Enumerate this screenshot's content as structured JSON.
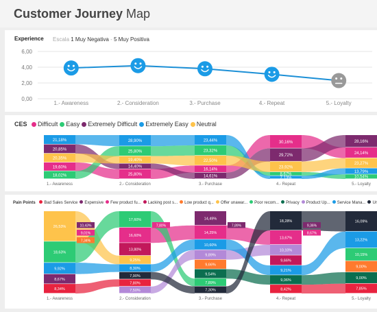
{
  "page": {
    "title_bold": "Customer Journey",
    "title_rest": " Map"
  },
  "experience": {
    "title": "Experience",
    "scale_label": "Escala",
    "scale_low": "1 Muy Negativa",
    "scale_sep": " - ",
    "scale_high": "5 Muy Positiva"
  },
  "ces": {
    "title": "CES"
  },
  "pain": {
    "title": "Pain Points"
  },
  "chart_data": [
    {
      "type": "line",
      "title": "Experience",
      "categories": [
        "1.- Awareness",
        "2.- Consideration",
        "3.- Purchase",
        "4.- Repeat",
        "5.- Loyalty"
      ],
      "values": [
        3.9,
        4.2,
        3.8,
        3.1,
        2.3
      ],
      "marker_icons": [
        "smile-icon",
        "smile-icon",
        "smile-icon",
        "smile-icon",
        "neutral-face-icon"
      ],
      "marker_colors": [
        "#1b9be6",
        "#1b9be6",
        "#1b9be6",
        "#1b9be6",
        "#999999"
      ],
      "ylim": [
        0,
        6
      ],
      "yticks": [
        "0,00",
        "2,00",
        "4,00",
        "6,00"
      ],
      "grid": true,
      "line_color": "#1b8fd6"
    },
    {
      "type": "ribbon",
      "title": "CES",
      "categories": [
        "1.- Awareness",
        "2.- Consideration",
        "3.- Purchase",
        "4.- Repeat",
        "5.- Loyalty"
      ],
      "series": [
        {
          "name": "Difficult",
          "color": "#e52e8a",
          "labels": [
            "19,60%",
            "25,80%",
            "16,14%",
            "30,16%",
            "24,14%"
          ],
          "values": [
            19.6,
            25.8,
            16.14,
            30.16,
            24.14
          ]
        },
        {
          "name": "Easy",
          "color": "#2dcb75",
          "labels": [
            "18,02%",
            "25,80%",
            "23,32%",
            "8,67%",
            "10,54%"
          ],
          "values": [
            18.02,
            25.8,
            23.32,
            8.67,
            10.54
          ]
        },
        {
          "name": "Extremely Difficult",
          "color": "#7d2a6e",
          "labels": [
            "20,85%",
            "14,40%",
            "14,61%",
            "29,72%",
            "28,16%"
          ],
          "values": [
            20.85,
            14.4,
            14.61,
            29.72,
            28.16
          ]
        },
        {
          "name": "Extremely Easy",
          "color": "#1b9be6",
          "labels": [
            "21,18%",
            "28,90%",
            "23,44%",
            "7,13%",
            "13,79%"
          ],
          "values": [
            21.18,
            28.9,
            23.44,
            7.13,
            13.79
          ]
        },
        {
          "name": "Neutral",
          "color": "#fec34b",
          "labels": [
            "20,35%",
            "19,40%",
            "22,50%",
            "23,92%",
            "23,27%"
          ],
          "values": [
            20.35,
            19.4,
            22.5,
            23.92,
            23.27
          ]
        }
      ],
      "stack_order": [
        [
          "Extremely Easy",
          "Extremely Difficult",
          "Neutral",
          "Difficult",
          "Easy"
        ],
        [
          "Extremely Easy",
          "Easy",
          "Neutral",
          "Extremely Difficult",
          "Difficult"
        ],
        [
          "Extremely Easy",
          "Easy",
          "Neutral",
          "Difficult",
          "Extremely Difficult"
        ],
        [
          "Difficult",
          "Extremely Difficult",
          "Neutral",
          "Easy",
          "Extremely Easy"
        ],
        [
          "Extremely Difficult",
          "Difficult",
          "Neutral",
          "Extremely Easy",
          "Easy"
        ]
      ]
    },
    {
      "type": "ribbon",
      "title": "Pain Points",
      "categories": [
        "1.- Awareness",
        "2.- Consideration",
        "3.- Purchase",
        "4.- Repeat",
        "5.- Loyalty"
      ],
      "series": [
        {
          "name": "Bad Sales Service",
          "color": "#e8233f",
          "labels": [
            "8,34%",
            "7,80%",
            "",
            "8,42%",
            "7,85%"
          ],
          "values": [
            8.34,
            7.8,
            0,
            8.42,
            7.85
          ]
        },
        {
          "name": "Expensive",
          "color": "#7d2a6e",
          "labels": [
            "8,67%",
            "",
            "14,49%",
            "",
            ""
          ],
          "values": [
            8.67,
            0,
            14.49,
            0,
            0
          ]
        },
        {
          "name": "Few product fu...",
          "color": "#e52e8a",
          "labels": [
            "",
            "16,60%",
            "14,25%",
            "13,67%",
            ""
          ],
          "values": [
            0,
            16.6,
            14.25,
            13.67,
            0
          ]
        },
        {
          "name": "Lacking post s...",
          "color": "#c2185b",
          "labels": [
            "",
            "13,80%",
            "",
            "9,66%",
            ""
          ],
          "values": [
            0,
            13.8,
            0,
            9.66,
            0
          ]
        },
        {
          "name": "Low product q...",
          "color": "#ff7a2e",
          "labels": [
            "",
            "",
            "9,66%",
            "",
            "9,00%"
          ],
          "values": [
            0,
            0,
            9.66,
            0,
            9.0
          ]
        },
        {
          "name": "Offer unawar...",
          "color": "#fec34b",
          "labels": [
            "26,53%",
            "9,25%",
            "",
            "",
            ""
          ],
          "values": [
            26.53,
            9.25,
            0,
            0,
            0
          ]
        },
        {
          "name": "Poor recom...",
          "color": "#2dcb75",
          "labels": [
            "18,63%",
            "17,60%",
            "7,89%",
            "",
            "10,15%"
          ],
          "values": [
            18.63,
            17.6,
            7.89,
            0,
            10.15
          ]
        },
        {
          "name": "Privacy",
          "color": "#0b6e4f",
          "labels": [
            "",
            "",
            "9,54%",
            "9,06%",
            "9,00%"
          ],
          "values": [
            0,
            0,
            9.54,
            9.06,
            9.0
          ]
        },
        {
          "name": "Product Up...",
          "color": "#b389d8",
          "labels": [
            "",
            "7,50%",
            "9,89%",
            "10,10%",
            ""
          ],
          "values": [
            0,
            7.5,
            9.89,
            10.1,
            0
          ]
        },
        {
          "name": "Service Mana...",
          "color": "#1b9be6",
          "labels": [
            "9,92%",
            "8,30%",
            "10,60%",
            "9,21%",
            "13,22%"
          ],
          "values": [
            9.92,
            8.3,
            10.6,
            9.21,
            13.22
          ]
        },
        {
          "name": "Unmet ex",
          "color": "#222a3a",
          "labels": [
            "",
            "7,90%",
            "7,30%",
            "18,28%",
            "16,09%"
          ],
          "values": [
            0,
            7.9,
            7.3,
            18.28,
            16.09
          ]
        }
      ],
      "extra_labels": [
        {
          "stage": "1.- Awareness",
          "label": "10,43%",
          "color": "#7d2a6e"
        },
        {
          "stage": "1.- Awareness",
          "label": "9,01%",
          "color": "#e52e8a"
        },
        {
          "stage": "1.- Awareness",
          "label": "7,34%",
          "color": "#ff7a2e"
        },
        {
          "stage": "2.- Consideration",
          "label": "7,80%",
          "color": "#e52e8a"
        },
        {
          "stage": "3.- Purchase",
          "label": "7,89%",
          "color": "#7d2a6e"
        },
        {
          "stage": "4.- Repeat",
          "label": "9,36%",
          "color": "#7d2a6e"
        },
        {
          "stage": "4.- Repeat",
          "label": "8,67%",
          "color": "#e52e8a"
        },
        {
          "stage": "5.- Loyalty",
          "label": "11,49%",
          "color": "#1b6fe6"
        },
        {
          "stage": "5.- Loyalty",
          "label": "7,66%",
          "color": "#e52e8a"
        }
      ]
    }
  ]
}
